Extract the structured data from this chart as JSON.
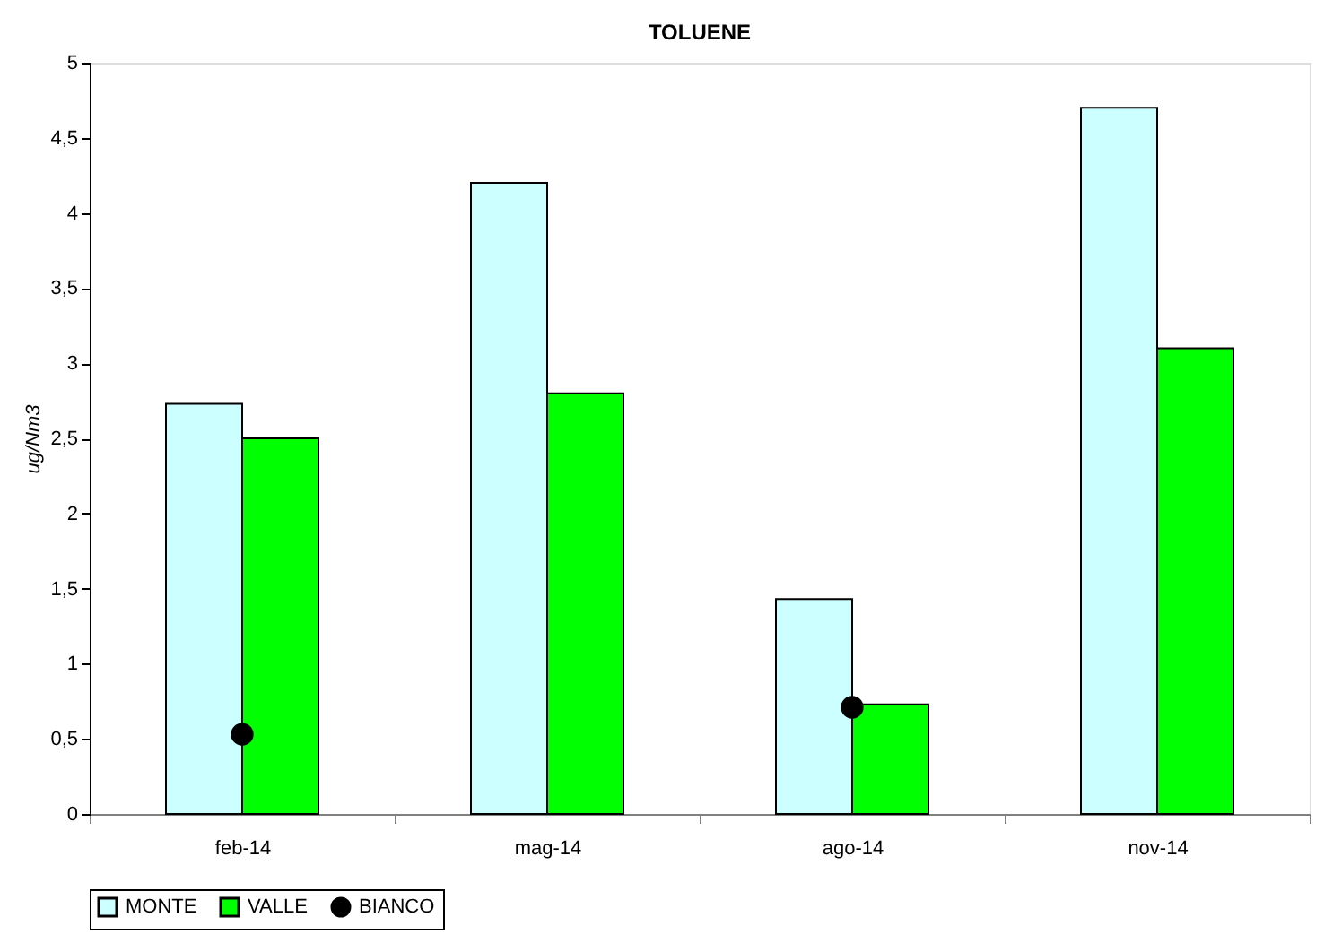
{
  "chart_data": {
    "type": "bar",
    "title": "TOLUENE",
    "ylabel": "ug/Nm3",
    "categories": [
      "feb-14",
      "mag-14",
      "ago-14",
      "nov-14"
    ],
    "series": [
      {
        "name": "MONTE",
        "color": "#ccffff",
        "values": [
          2.73,
          4.2,
          1.43,
          4.7
        ]
      },
      {
        "name": "VALLE",
        "color": "#00ff00",
        "values": [
          2.5,
          2.8,
          0.73,
          3.1
        ]
      },
      {
        "name": "BIANCO",
        "type": "scatter",
        "marker": "circle",
        "color": "#000000",
        "values": [
          0.53,
          null,
          0.71,
          null
        ]
      }
    ],
    "ylim": [
      0,
      5
    ],
    "yticks": [
      0,
      {
        "value": 0.5,
        "label": "0,5"
      },
      1,
      {
        "value": 1.5,
        "label": "1,5"
      },
      2,
      {
        "value": 2.5,
        "label": "2,5"
      },
      3,
      {
        "value": 3.5,
        "label": "3,5"
      },
      4,
      {
        "value": 4.5,
        "label": "4,5"
      },
      5
    ],
    "grid": false,
    "legend": "bottom"
  }
}
